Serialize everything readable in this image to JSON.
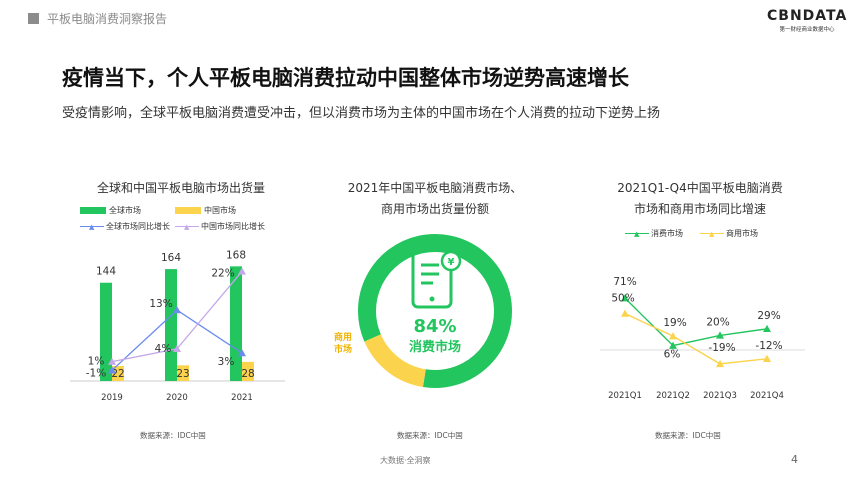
{
  "header": {
    "report_title": "平板电脑消费洞察报告",
    "logo_text": "CBNDATA",
    "logo_sub": "第一财经商业数据中心"
  },
  "title": "疫情当下，个人平板电脑消费拉动中国整体市场逆势高速增长",
  "subtitle": "受疫情影响，全球平板电脑消费遭受冲击，但以消费市场为主体的中国市场在个人消费的拉动下逆势上扬",
  "colors": {
    "green": "#22c55e",
    "yellow": "#fcd34d",
    "blue": "#6b8cef",
    "purple": "#c4a8ea"
  },
  "chart_data": [
    {
      "type": "bar",
      "title": "全球和中国平板电脑市场出货量",
      "categories": [
        "2019",
        "2020",
        "2021"
      ],
      "series": [
        {
          "name": "全球市场",
          "values": [
            144,
            164,
            168
          ],
          "labels": [
            "144",
            "164",
            "168"
          ]
        },
        {
          "name": "中国市场",
          "values": [
            22,
            23,
            28
          ],
          "labels": [
            "22",
            "23",
            "28"
          ]
        }
      ],
      "line_series": [
        {
          "name": "全球市场同比增长",
          "values": [
            -1,
            13,
            3
          ],
          "labels": [
            "-1%",
            "13%",
            "3%"
          ]
        },
        {
          "name": "中国市场同比增长",
          "values": [
            1,
            4,
            22
          ],
          "labels": [
            "1%",
            "4%",
            "22%"
          ]
        }
      ],
      "source": "数据来源：IDC中国"
    },
    {
      "type": "pie",
      "title_line1": "2021年中国平板电脑消费市场、",
      "title_line2": "商用市场出货量份额",
      "slices": [
        {
          "name": "消费市场",
          "value": 84,
          "label": "84%"
        },
        {
          "name": "商用市场",
          "value": 16
        }
      ],
      "source": "数据来源：IDC中国"
    },
    {
      "type": "line",
      "title_line1": "2021Q1-Q4中国平板电脑消费",
      "title_line2": "市场和商用市场同比增速",
      "categories": [
        "2021Q1",
        "2021Q2",
        "2021Q3",
        "2021Q4"
      ],
      "series": [
        {
          "name": "消费市场",
          "values": [
            71,
            6,
            20,
            29
          ],
          "labels": [
            "71%",
            "6%",
            "20%",
            "29%"
          ]
        },
        {
          "name": "商用市场",
          "values": [
            50,
            19,
            -19,
            -12
          ],
          "labels": [
            "50%",
            "19%",
            "-19%",
            "-12%"
          ]
        }
      ],
      "source": "数据来源：IDC中国"
    }
  ],
  "footer": {
    "text": "大数据·全洞察",
    "page": "4"
  }
}
